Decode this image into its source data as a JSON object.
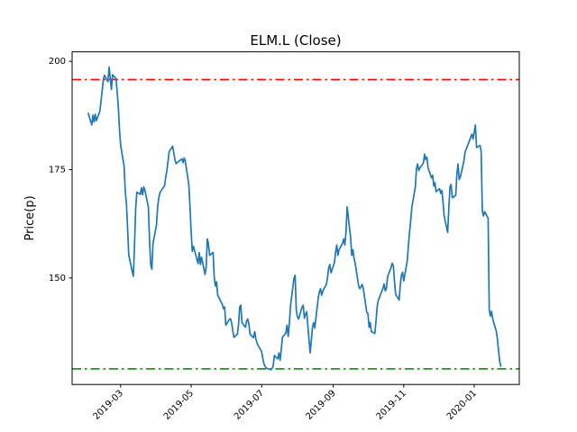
{
  "figure": {
    "background": "#ffffff",
    "spine_color": "#000000"
  },
  "chart_data": {
    "type": "line",
    "title": "ELM.L (Close)",
    "ylabel": "Price(p)",
    "xlabel": "",
    "grid": false,
    "legend": false,
    "xlim": [
      "2019-01-18",
      "2020-02-09"
    ],
    "ylim": [
      125.4,
      202.2
    ],
    "y_ticks": [
      150,
      175,
      200
    ],
    "x_ticks": [
      {
        "label": "2019-03",
        "date": "2019-03-01"
      },
      {
        "label": "2019-05",
        "date": "2019-05-01"
      },
      {
        "label": "2019-07",
        "date": "2019-07-01"
      },
      {
        "label": "2019-09",
        "date": "2019-09-01"
      },
      {
        "label": "2019-11",
        "date": "2019-11-01"
      },
      {
        "label": "2020-01",
        "date": "2020-01-01"
      }
    ],
    "hlines": [
      {
        "name": "upper-threshold",
        "value": 195.8,
        "color": "#ff0000",
        "line_style": "dashdot",
        "line_width": 1.6
      },
      {
        "name": "lower-threshold",
        "value": 129.0,
        "color": "#008000",
        "line_style": "dashdot",
        "line_width": 1.6
      }
    ],
    "series": [
      {
        "name": "ELM.L Close",
        "color": "#1f77b4",
        "line_style": "solid",
        "line_width": 1.7,
        "points": [
          [
            "2019-02-01",
            188.0
          ],
          [
            "2019-02-04",
            185.3
          ],
          [
            "2019-02-05",
            187.6
          ],
          [
            "2019-02-06",
            186.0
          ],
          [
            "2019-02-07",
            187.8
          ],
          [
            "2019-02-08",
            186.3
          ],
          [
            "2019-02-11",
            188.5
          ],
          [
            "2019-02-12",
            190.8
          ],
          [
            "2019-02-13",
            193.2
          ],
          [
            "2019-02-14",
            195.8
          ],
          [
            "2019-02-15",
            196.8
          ],
          [
            "2019-02-18",
            195.3
          ],
          [
            "2019-02-19",
            198.7
          ],
          [
            "2019-02-20",
            196.2
          ],
          [
            "2019-02-21",
            193.5
          ],
          [
            "2019-02-22",
            196.9
          ],
          [
            "2019-02-25",
            196.0
          ],
          [
            "2019-02-26",
            193.0
          ],
          [
            "2019-02-27",
            189.4
          ],
          [
            "2019-02-28",
            184.2
          ],
          [
            "2019-03-01",
            180.6
          ],
          [
            "2019-03-04",
            175.8
          ],
          [
            "2019-03-05",
            169.9
          ],
          [
            "2019-03-06",
            167.2
          ],
          [
            "2019-03-07",
            161.5
          ],
          [
            "2019-03-08",
            155.3
          ],
          [
            "2019-03-11",
            151.5
          ],
          [
            "2019-03-12",
            150.4
          ],
          [
            "2019-03-13",
            157.5
          ],
          [
            "2019-03-14",
            166.0
          ],
          [
            "2019-03-15",
            169.8
          ],
          [
            "2019-03-18",
            169.3
          ],
          [
            "2019-03-19",
            170.8
          ],
          [
            "2019-03-20",
            169.2
          ],
          [
            "2019-03-21",
            171.0
          ],
          [
            "2019-03-22",
            170.2
          ],
          [
            "2019-03-25",
            166.4
          ],
          [
            "2019-03-26",
            158.6
          ],
          [
            "2019-03-27",
            153.1
          ],
          [
            "2019-03-28",
            152.0
          ],
          [
            "2019-03-29",
            158.0
          ],
          [
            "2019-04-01",
            162.2
          ],
          [
            "2019-04-02",
            166.4
          ],
          [
            "2019-04-03",
            168.5
          ],
          [
            "2019-04-04",
            169.7
          ],
          [
            "2019-04-05",
            170.1
          ],
          [
            "2019-04-08",
            171.3
          ],
          [
            "2019-04-09",
            173.3
          ],
          [
            "2019-04-10",
            174.8
          ],
          [
            "2019-04-11",
            177.0
          ],
          [
            "2019-04-12",
            179.2
          ],
          [
            "2019-04-15",
            180.4
          ],
          [
            "2019-04-16",
            178.8
          ],
          [
            "2019-04-17",
            177.3
          ],
          [
            "2019-04-18",
            176.4
          ],
          [
            "2019-04-23",
            177.5
          ],
          [
            "2019-04-24",
            176.6
          ],
          [
            "2019-04-25",
            177.7
          ],
          [
            "2019-04-26",
            176.9
          ],
          [
            "2019-04-29",
            171.5
          ],
          [
            "2019-04-30",
            166.4
          ],
          [
            "2019-05-01",
            160.7
          ],
          [
            "2019-05-02",
            156.1
          ],
          [
            "2019-05-03",
            157.3
          ],
          [
            "2019-05-07",
            153.3
          ],
          [
            "2019-05-08",
            155.9
          ],
          [
            "2019-05-09",
            153.1
          ],
          [
            "2019-05-10",
            154.8
          ],
          [
            "2019-05-13",
            150.8
          ],
          [
            "2019-05-14",
            152.5
          ],
          [
            "2019-05-15",
            159.0
          ],
          [
            "2019-05-16",
            157.9
          ],
          [
            "2019-05-17",
            155.2
          ],
          [
            "2019-05-20",
            155.9
          ],
          [
            "2019-05-21",
            150.2
          ],
          [
            "2019-05-22",
            148.1
          ],
          [
            "2019-05-23",
            149.1
          ],
          [
            "2019-05-24",
            146.0
          ],
          [
            "2019-05-28",
            143.9
          ],
          [
            "2019-05-29",
            142.9
          ],
          [
            "2019-05-30",
            143.3
          ],
          [
            "2019-05-31",
            139.1
          ],
          [
            "2019-06-03",
            140.4
          ],
          [
            "2019-06-04",
            140.6
          ],
          [
            "2019-06-05",
            139.7
          ],
          [
            "2019-06-06",
            137.9
          ],
          [
            "2019-06-07",
            136.3
          ],
          [
            "2019-06-10",
            137.0
          ],
          [
            "2019-06-11",
            139.2
          ],
          [
            "2019-06-12",
            143.3
          ],
          [
            "2019-06-13",
            143.7
          ],
          [
            "2019-06-14",
            139.7
          ],
          [
            "2019-06-17",
            138.6
          ],
          [
            "2019-06-18",
            140.1
          ],
          [
            "2019-06-19",
            140.5
          ],
          [
            "2019-06-20",
            139.3
          ],
          [
            "2019-06-21",
            137.0
          ],
          [
            "2019-06-24",
            136.2
          ],
          [
            "2019-06-25",
            137.6
          ],
          [
            "2019-06-26",
            136.0
          ],
          [
            "2019-06-27",
            135.0
          ],
          [
            "2019-06-28",
            134.4
          ],
          [
            "2019-07-01",
            133.0
          ],
          [
            "2019-07-02",
            131.4
          ],
          [
            "2019-07-03",
            130.2
          ],
          [
            "2019-07-04",
            129.6
          ],
          [
            "2019-07-05",
            129.2
          ],
          [
            "2019-07-08",
            128.9
          ],
          [
            "2019-07-09",
            128.8
          ],
          [
            "2019-07-10",
            129.1
          ],
          [
            "2019-07-11",
            129.6
          ],
          [
            "2019-07-12",
            132.1
          ],
          [
            "2019-07-15",
            131.3
          ],
          [
            "2019-07-16",
            132.7
          ],
          [
            "2019-07-17",
            131.0
          ],
          [
            "2019-07-18",
            133.5
          ],
          [
            "2019-07-19",
            136.3
          ],
          [
            "2019-07-22",
            137.3
          ],
          [
            "2019-07-23",
            139.1
          ],
          [
            "2019-07-24",
            136.5
          ],
          [
            "2019-07-25",
            139.5
          ],
          [
            "2019-07-26",
            143.5
          ],
          [
            "2019-07-29",
            150.0
          ],
          [
            "2019-07-30",
            150.6
          ],
          [
            "2019-07-31",
            142.6
          ],
          [
            "2019-08-01",
            141.0
          ],
          [
            "2019-08-02",
            140.5
          ],
          [
            "2019-08-05",
            143.3
          ],
          [
            "2019-08-06",
            143.7
          ],
          [
            "2019-08-07",
            140.7
          ],
          [
            "2019-08-08",
            141.6
          ],
          [
            "2019-08-09",
            142.2
          ],
          [
            "2019-08-12",
            132.7
          ],
          [
            "2019-08-13",
            135.5
          ],
          [
            "2019-08-14",
            138.6
          ],
          [
            "2019-08-15",
            139.7
          ],
          [
            "2019-08-16",
            138.4
          ],
          [
            "2019-08-19",
            145.4
          ],
          [
            "2019-08-20",
            146.8
          ],
          [
            "2019-08-21",
            147.5
          ],
          [
            "2019-08-22",
            146.0
          ],
          [
            "2019-08-23",
            147.0
          ],
          [
            "2019-08-26",
            148.5
          ],
          [
            "2019-08-27",
            150.0
          ],
          [
            "2019-08-28",
            152.3
          ],
          [
            "2019-08-29",
            153.1
          ],
          [
            "2019-08-30",
            151.2
          ],
          [
            "2019-09-02",
            153.5
          ],
          [
            "2019-09-03",
            155.9
          ],
          [
            "2019-09-04",
            157.6
          ],
          [
            "2019-09-05",
            155.2
          ],
          [
            "2019-09-06",
            156.5
          ],
          [
            "2019-09-09",
            158.0
          ],
          [
            "2019-09-10",
            159.0
          ],
          [
            "2019-09-11",
            157.6
          ],
          [
            "2019-09-12",
            160.5
          ],
          [
            "2019-09-13",
            166.4
          ],
          [
            "2019-09-16",
            159.4
          ],
          [
            "2019-09-17",
            155.2
          ],
          [
            "2019-09-18",
            156.5
          ],
          [
            "2019-09-19",
            154.5
          ],
          [
            "2019-09-20",
            153.3
          ],
          [
            "2019-09-23",
            148.1
          ],
          [
            "2019-09-24",
            147.5
          ],
          [
            "2019-09-25",
            148.0
          ],
          [
            "2019-09-26",
            148.5
          ],
          [
            "2019-09-27",
            147.5
          ],
          [
            "2019-09-30",
            142.0
          ],
          [
            "2019-10-01",
            141.8
          ],
          [
            "2019-10-02",
            138.6
          ],
          [
            "2019-10-03",
            139.7
          ],
          [
            "2019-10-04",
            137.6
          ],
          [
            "2019-10-07",
            137.2
          ],
          [
            "2019-10-08",
            140.0
          ],
          [
            "2019-10-09",
            143.4
          ],
          [
            "2019-10-10",
            144.9
          ],
          [
            "2019-10-11",
            145.5
          ],
          [
            "2019-10-14",
            147.6
          ],
          [
            "2019-10-15",
            148.6
          ],
          [
            "2019-10-16",
            147.0
          ],
          [
            "2019-10-17",
            147.6
          ],
          [
            "2019-10-18",
            150.3
          ],
          [
            "2019-10-21",
            152.4
          ],
          [
            "2019-10-22",
            153.4
          ],
          [
            "2019-10-23",
            152.8
          ],
          [
            "2019-10-24",
            149.1
          ],
          [
            "2019-10-25",
            146.2
          ],
          [
            "2019-10-28",
            144.9
          ],
          [
            "2019-10-29",
            148.3
          ],
          [
            "2019-10-30",
            150.7
          ],
          [
            "2019-10-31",
            151.3
          ],
          [
            "2019-11-01",
            149.3
          ],
          [
            "2019-11-04",
            153.9
          ],
          [
            "2019-11-05",
            157.4
          ],
          [
            "2019-11-06",
            160.5
          ],
          [
            "2019-11-07",
            163.2
          ],
          [
            "2019-11-08",
            166.3
          ],
          [
            "2019-11-11",
            171.0
          ],
          [
            "2019-11-12",
            175.2
          ],
          [
            "2019-11-13",
            176.3
          ],
          [
            "2019-11-14",
            174.8
          ],
          [
            "2019-11-15",
            175.4
          ],
          [
            "2019-11-18",
            176.5
          ],
          [
            "2019-11-19",
            178.6
          ],
          [
            "2019-11-20",
            177.3
          ],
          [
            "2019-11-21",
            177.9
          ],
          [
            "2019-11-22",
            175.5
          ],
          [
            "2019-11-25",
            173.1
          ],
          [
            "2019-11-26",
            173.7
          ],
          [
            "2019-11-27",
            171.2
          ],
          [
            "2019-11-28",
            172.0
          ],
          [
            "2019-11-29",
            169.9
          ],
          [
            "2019-12-02",
            170.6
          ],
          [
            "2019-12-03",
            169.5
          ],
          [
            "2019-12-04",
            170.2
          ],
          [
            "2019-12-05",
            167.5
          ],
          [
            "2019-12-06",
            164.3
          ],
          [
            "2019-12-09",
            160.5
          ],
          [
            "2019-12-10",
            166.0
          ],
          [
            "2019-12-11",
            171.0
          ],
          [
            "2019-12-12",
            171.6
          ],
          [
            "2019-12-13",
            168.5
          ],
          [
            "2019-12-16",
            169.1
          ],
          [
            "2019-12-17",
            174.1
          ],
          [
            "2019-12-18",
            176.3
          ],
          [
            "2019-12-19",
            172.7
          ],
          [
            "2019-12-20",
            173.3
          ],
          [
            "2019-12-23",
            176.9
          ],
          [
            "2019-12-24",
            179.0
          ],
          [
            "2019-12-27",
            181.1
          ],
          [
            "2019-12-30",
            183.2
          ],
          [
            "2019-12-31",
            182.1
          ],
          [
            "2020-01-02",
            185.3
          ],
          [
            "2020-01-03",
            180.1
          ],
          [
            "2020-01-06",
            180.6
          ],
          [
            "2020-01-07",
            179.2
          ],
          [
            "2020-01-08",
            165.5
          ],
          [
            "2020-01-09",
            164.3
          ],
          [
            "2020-01-10",
            165.3
          ],
          [
            "2020-01-13",
            163.8
          ],
          [
            "2020-01-14",
            142.6
          ],
          [
            "2020-01-15",
            141.2
          ],
          [
            "2020-01-16",
            142.3
          ],
          [
            "2020-01-17",
            140.5
          ],
          [
            "2020-01-20",
            137.8
          ],
          [
            "2020-01-21",
            136.0
          ],
          [
            "2020-01-22",
            133.3
          ],
          [
            "2020-01-23",
            130.8
          ],
          [
            "2020-01-24",
            129.6
          ]
        ]
      }
    ]
  }
}
